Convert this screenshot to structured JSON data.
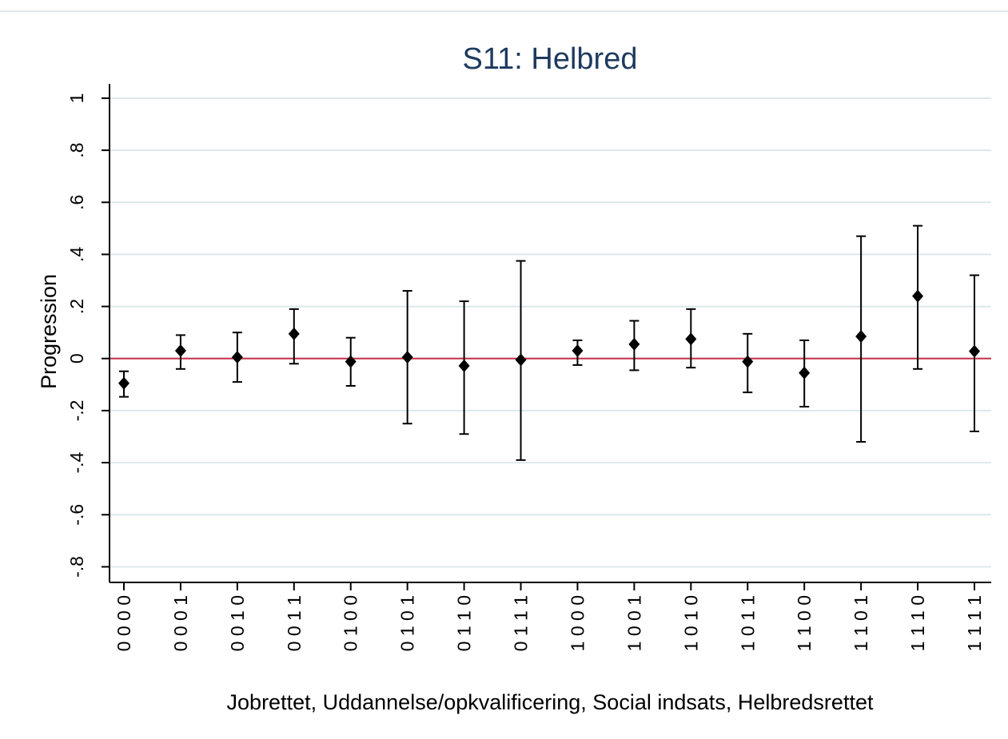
{
  "chart_data": {
    "type": "errorbar",
    "title": "S11: Helbred",
    "x_label": "Jobrettet, Uddannelse/opkvalificering, Social indsats, Helbredsrettet",
    "y_label": "Progression",
    "categories": [
      "0 0 0 0",
      "0 0 0 1",
      "0 0 1 0",
      "0 0 1 1",
      "0 1 0 0",
      "0 1 0 1",
      "0 1 1 0",
      "0 1 1 1",
      "1 0 0 0",
      "1 0 0 1",
      "1 0 1 0",
      "1 0 1 1",
      "1 1 0 0",
      "1 1 0 1",
      "1 1 1 0",
      "1 1 1 1"
    ],
    "values": [
      -0.095,
      0.03,
      0.005,
      0.095,
      -0.012,
      0.005,
      -0.028,
      -0.005,
      0.03,
      0.055,
      0.075,
      -0.012,
      -0.055,
      0.085,
      0.24,
      0.028
    ],
    "lower": [
      -0.147,
      -0.04,
      -0.09,
      -0.02,
      -0.105,
      -0.25,
      -0.29,
      -0.39,
      -0.025,
      -0.045,
      -0.035,
      -0.13,
      -0.185,
      -0.32,
      -0.04,
      -0.28
    ],
    "upper": [
      -0.049,
      0.09,
      0.1,
      0.19,
      0.08,
      0.26,
      0.22,
      0.375,
      0.07,
      0.145,
      0.19,
      0.095,
      0.07,
      0.47,
      0.51,
      0.32
    ],
    "color": "#000000",
    "reference_line": {
      "value": 0,
      "color": "#c8304a"
    },
    "ylim": [
      -0.86,
      1.055
    ],
    "yticks": [
      {
        "value": -0.8,
        "label": "-.8"
      },
      {
        "value": -0.6,
        "label": "-.6"
      },
      {
        "value": -0.4,
        "label": "-.4"
      },
      {
        "value": -0.2,
        "label": "-.2"
      },
      0,
      {
        "value": 0.2,
        "label": ".2"
      },
      {
        "value": 0.4,
        "label": ".4"
      },
      {
        "value": 0.6,
        "label": ".6"
      },
      {
        "value": 0.8,
        "label": ".8"
      },
      1
    ],
    "grid": true
  }
}
